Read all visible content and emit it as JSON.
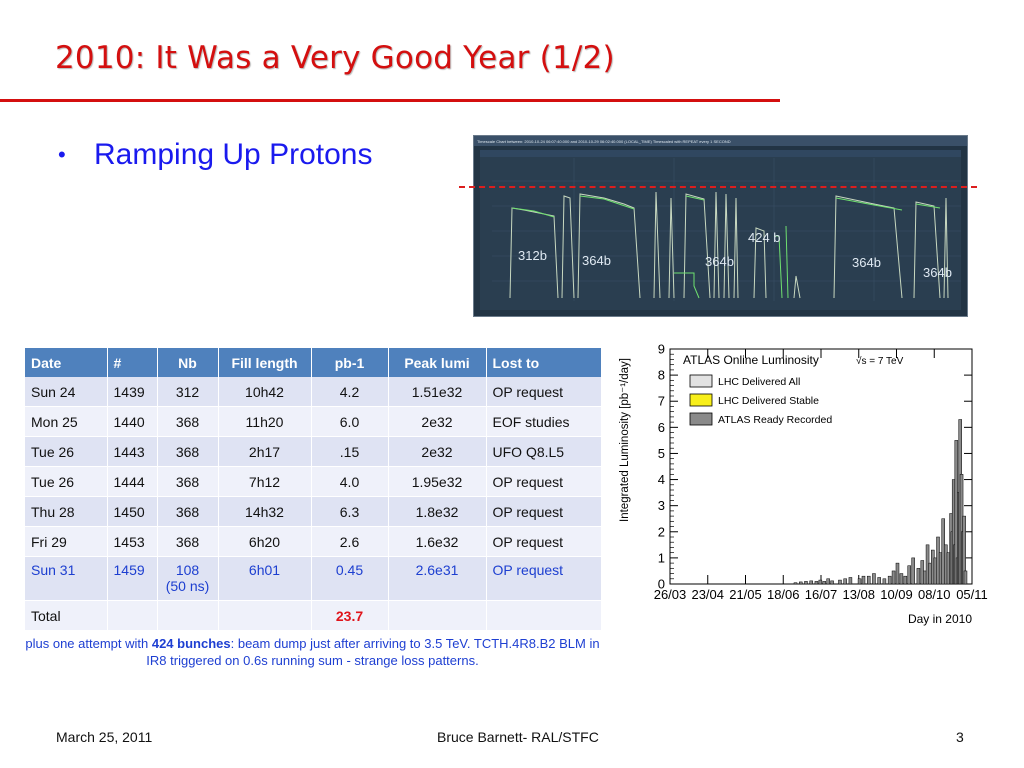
{
  "slide": {
    "title": "2010: It Was a Very Good Year (1/2)",
    "bullet": "Ramping Up Protons"
  },
  "timber": {
    "header": "Timescale Chart between: 2010-10-24 06:07:40.000 and 2010-10-29 06:02:40.000 (LOCAL_TIME) Timescaled with REPEAT every 1 SECOND",
    "labels": [
      "312b",
      "364b",
      "364b",
      "424 b",
      "364b",
      "364b"
    ]
  },
  "table": {
    "headers": [
      "Date",
      "#",
      "Nb",
      "Fill length",
      "pb-1",
      "Peak lumi",
      "Lost to"
    ],
    "rows": [
      [
        "Sun 24",
        "1439",
        "312",
        "10h42",
        "4.2",
        "1.51e32",
        "OP request"
      ],
      [
        "Mon 25",
        "1440",
        "368",
        "11h20",
        "6.0",
        "2e32",
        "EOF studies"
      ],
      [
        "Tue 26",
        "1443",
        "368",
        "2h17",
        ".15",
        "2e32",
        "UFO Q8.L5"
      ],
      [
        "Tue 26",
        "1444",
        "368",
        "7h12",
        "4.0",
        "1.95e32",
        "OP request"
      ],
      [
        "Thu 28",
        "1450",
        "368",
        "14h32",
        "6.3",
        "1.8e32",
        "OP request"
      ],
      [
        "Fri 29",
        "1453",
        "368",
        "6h20",
        "2.6",
        "1.6e32",
        "OP request"
      ]
    ],
    "highlight_row": {
      "date": "Sun 31",
      "num": "1459",
      "nb": "108",
      "nb_note": "(50 ns)",
      "fill": "6h01",
      "pb": "0.45",
      "peak": "2.6e31",
      "lost": "OP request"
    },
    "total_label": "Total",
    "total_value": "23.7"
  },
  "note": {
    "pre": "plus one attempt with ",
    "bold": "424 bunches",
    "post": ": beam dump just after arriving to 3.5 TeV. TCTH.4R8.B2 BLM in IR8 triggered on 0.6s running sum - strange loss patterns."
  },
  "chart_data": {
    "type": "bar",
    "title": "ATLAS Online Luminosity",
    "energy_label": "√s = 7 TeV",
    "ylabel": "Integrated Luminosity [pb⁻¹/day]",
    "xlabel": "Day in 2010",
    "ylim": [
      0,
      9
    ],
    "yticks": [
      "0",
      "1",
      "2",
      "3",
      "4",
      "5",
      "6",
      "7",
      "8",
      "9"
    ],
    "xticks": [
      "26/03",
      "23/04",
      "21/05",
      "18/06",
      "16/07",
      "13/08",
      "10/09",
      "08/10",
      "05/11"
    ],
    "x_start_day": 0,
    "x_end_day": 231,
    "legend": [
      {
        "name": "LHC Delivered All",
        "color": "#e2e2e2"
      },
      {
        "name": "LHC Delivered Stable",
        "color": "#f8ef1a"
      },
      {
        "name": "ATLAS Ready Recorded",
        "color": "#8a8a8a"
      }
    ],
    "days": [
      96,
      100,
      104,
      108,
      112,
      115,
      118,
      121,
      124,
      130,
      134,
      138,
      145,
      148,
      152,
      156,
      160,
      164,
      168,
      171,
      174,
      177,
      180,
      183,
      186,
      190,
      193,
      195,
      197,
      199,
      201,
      203,
      205,
      207,
      209,
      211,
      213,
      215,
      216,
      217,
      218,
      219,
      220,
      221,
      222,
      223,
      224,
      225,
      226
    ],
    "values": [
      0.05,
      0.08,
      0.1,
      0.12,
      0.1,
      0.15,
      0.1,
      0.2,
      0.12,
      0.15,
      0.2,
      0.25,
      0.2,
      0.3,
      0.3,
      0.4,
      0.25,
      0.2,
      0.3,
      0.5,
      0.8,
      0.4,
      0.3,
      0.7,
      1.0,
      0.6,
      0.9,
      0.5,
      1.5,
      0.8,
      1.3,
      1.0,
      1.8,
      1.2,
      2.5,
      1.5,
      1.2,
      2.7,
      2.0,
      4.0,
      1.5,
      5.5,
      1.0,
      3.5,
      6.3,
      4.2,
      2.0,
      2.6,
      0.5
    ]
  },
  "footer": {
    "date": "March 25, 2011",
    "author": "Bruce Barnett- RAL/STFC",
    "page": "3"
  }
}
